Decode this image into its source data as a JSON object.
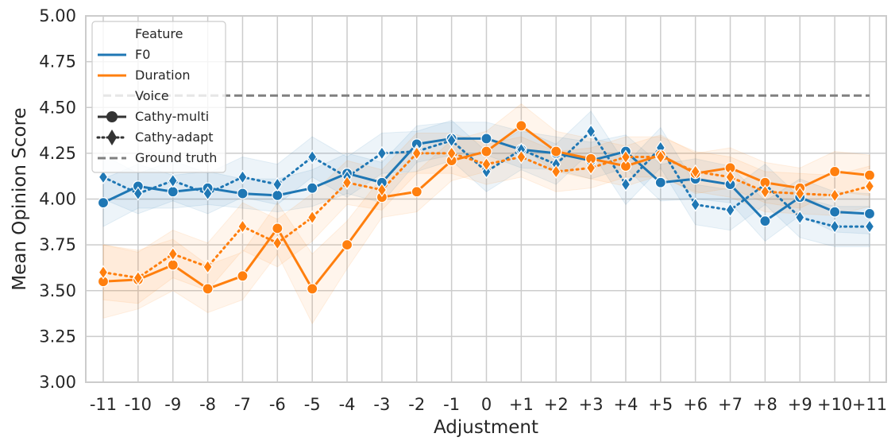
{
  "chart_data": {
    "type": "line",
    "xlabel": "Adjustment",
    "ylabel": "Mean Opinion Score",
    "ylim": [
      3.0,
      5.0
    ],
    "yticks": [
      "3.00",
      "3.25",
      "3.50",
      "3.75",
      "4.00",
      "4.25",
      "4.50",
      "4.75",
      "5.00"
    ],
    "categories": [
      "-11",
      "-10",
      "-9",
      "-8",
      "-7",
      "-6",
      "-5",
      "-4",
      "-3",
      "-2",
      "-1",
      "0",
      "+1",
      "+2",
      "+3",
      "+4",
      "+5",
      "+6",
      "+7",
      "+8",
      "+9",
      "+10",
      "+11"
    ],
    "grid": true,
    "legend_position": "top-left",
    "colors": {
      "F0": "#1f77b4",
      "Duration": "#ff7f0e",
      "Ground truth": "#808080"
    },
    "series": [
      {
        "feature": "F0",
        "voice": "Cathy-multi",
        "values": [
          3.98,
          4.07,
          4.04,
          4.06,
          4.03,
          4.02,
          4.06,
          4.14,
          4.09,
          4.3,
          4.33,
          4.33,
          4.27,
          4.25,
          4.21,
          4.26,
          4.09,
          4.11,
          4.08,
          3.88,
          4.01,
          3.93,
          3.92
        ],
        "ci_lower": [
          3.85,
          3.95,
          3.95,
          3.97,
          3.95,
          3.93,
          3.96,
          4.03,
          3.98,
          4.2,
          4.24,
          4.24,
          4.17,
          4.16,
          4.11,
          4.17,
          3.99,
          4.0,
          3.98,
          3.77,
          3.91,
          3.82,
          3.81
        ],
        "ci_upper": [
          4.11,
          4.19,
          4.13,
          4.15,
          4.11,
          4.11,
          4.16,
          4.25,
          4.2,
          4.4,
          4.42,
          4.42,
          4.37,
          4.34,
          4.31,
          4.35,
          4.19,
          4.22,
          4.18,
          3.99,
          4.11,
          4.04,
          4.03
        ]
      },
      {
        "feature": "F0",
        "voice": "Cathy-adapt",
        "values": [
          4.12,
          4.03,
          4.1,
          4.03,
          4.12,
          4.08,
          4.23,
          4.12,
          4.25,
          4.26,
          4.32,
          4.15,
          4.27,
          4.19,
          4.37,
          4.08,
          4.28,
          3.97,
          3.94,
          4.08,
          3.9,
          3.85,
          3.85
        ],
        "ci_lower": [
          4.0,
          3.92,
          3.99,
          3.92,
          4.01,
          3.97,
          4.12,
          4.01,
          4.14,
          4.15,
          4.21,
          4.04,
          4.16,
          4.08,
          4.26,
          3.97,
          4.17,
          3.86,
          3.83,
          3.97,
          3.79,
          3.74,
          3.74
        ],
        "ci_upper": [
          4.24,
          4.14,
          4.21,
          4.14,
          4.23,
          4.19,
          4.34,
          4.23,
          4.36,
          4.37,
          4.43,
          4.26,
          4.38,
          4.3,
          4.48,
          4.19,
          4.39,
          4.08,
          4.05,
          4.19,
          4.01,
          3.96,
          3.96
        ]
      },
      {
        "feature": "Duration",
        "voice": "Cathy-multi",
        "values": [
          3.55,
          3.56,
          3.64,
          3.51,
          3.58,
          3.84,
          3.51,
          3.75,
          4.01,
          4.04,
          4.21,
          4.26,
          4.4,
          4.26,
          4.22,
          4.18,
          4.24,
          4.14,
          4.17,
          4.09,
          4.06,
          4.15,
          4.13
        ],
        "ci_lower": [
          3.35,
          3.4,
          3.5,
          3.38,
          3.45,
          3.7,
          3.32,
          3.62,
          3.9,
          3.93,
          4.1,
          4.15,
          4.28,
          4.15,
          4.11,
          4.07,
          4.13,
          4.03,
          4.06,
          3.98,
          3.95,
          4.04,
          4.02
        ],
        "ci_upper": [
          3.75,
          3.72,
          3.78,
          3.64,
          3.71,
          3.98,
          3.7,
          3.88,
          4.12,
          4.15,
          4.32,
          4.37,
          4.52,
          4.37,
          4.33,
          4.29,
          4.35,
          4.25,
          4.28,
          4.2,
          4.17,
          4.26,
          4.24
        ]
      },
      {
        "feature": "Duration",
        "voice": "Cathy-adapt",
        "values": [
          3.6,
          3.57,
          3.7,
          3.63,
          3.85,
          3.76,
          3.9,
          4.09,
          4.05,
          4.25,
          4.25,
          4.19,
          4.23,
          4.15,
          4.17,
          4.23,
          4.23,
          4.15,
          4.12,
          4.04,
          4.03,
          4.02,
          4.07
        ],
        "ci_lower": [
          3.45,
          3.43,
          3.57,
          3.5,
          3.72,
          3.63,
          3.77,
          3.97,
          3.94,
          4.14,
          4.14,
          4.08,
          4.12,
          4.04,
          4.06,
          4.12,
          4.12,
          4.04,
          4.01,
          3.93,
          3.92,
          3.91,
          3.96
        ],
        "ci_upper": [
          3.75,
          3.71,
          3.83,
          3.76,
          3.98,
          3.89,
          4.03,
          4.21,
          4.16,
          4.36,
          4.36,
          4.3,
          4.34,
          4.26,
          4.28,
          4.34,
          4.34,
          4.26,
          4.23,
          4.15,
          4.14,
          4.13,
          4.18
        ]
      }
    ],
    "ground_truth": 4.565,
    "legend": {
      "feature_title": "Feature",
      "features": [
        "F0",
        "Duration"
      ],
      "voice_title": "Voice",
      "voices": [
        "Cathy-multi",
        "Cathy-adapt"
      ],
      "ground_truth_label": "Ground truth"
    }
  }
}
